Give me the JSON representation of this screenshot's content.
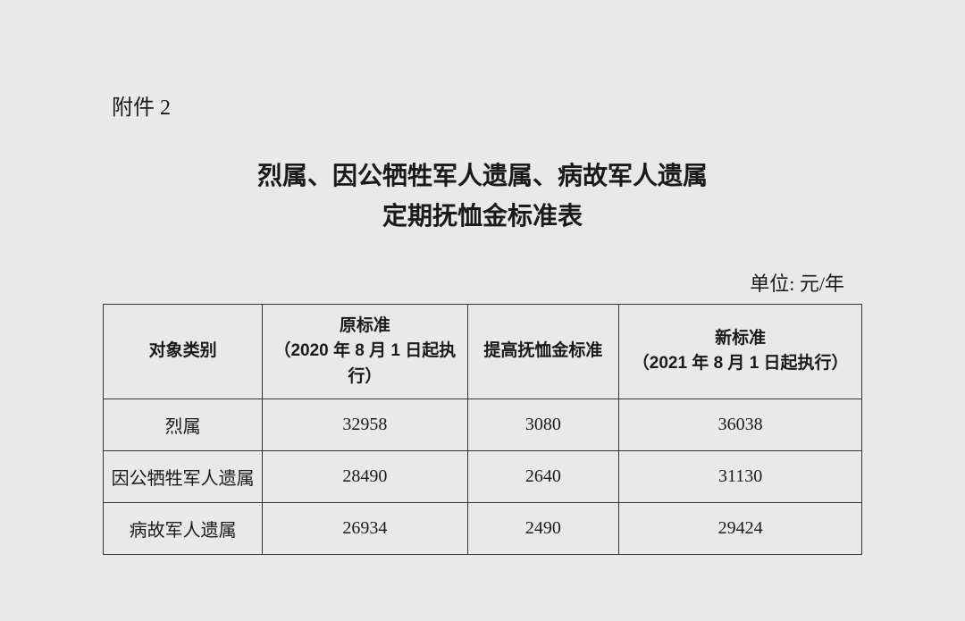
{
  "attachment_label": "附件 2",
  "title_line1": "烈属、因公牺牲军人遗属、病故军人遗属",
  "title_line2": "定期抚恤金标准表",
  "unit_label": "单位: 元/年",
  "table": {
    "columns": [
      {
        "main": "对象类别",
        "sub": ""
      },
      {
        "main": "原标准",
        "sub": "（2020 年 8 月 1 日起执行）"
      },
      {
        "main": "提高抚恤金标准",
        "sub": ""
      },
      {
        "main": "新标准",
        "sub": "（2021 年 8 月 1 日起执行）"
      }
    ],
    "rows": [
      {
        "category": "烈属",
        "original": "32958",
        "increase": "3080",
        "new": "36038"
      },
      {
        "category": "因公牺牲军人遗属",
        "original": "28490",
        "increase": "2640",
        "new": "31130"
      },
      {
        "category": "病故军人遗属",
        "original": "26934",
        "increase": "2490",
        "new": "29424"
      }
    ]
  },
  "styling": {
    "background_color": "#e8e9e8",
    "text_color": "#1a1a1a",
    "border_color": "#333333",
    "title_fontsize": 28,
    "header_fontsize": 19,
    "cell_fontsize": 20,
    "col_widths_pct": [
      21,
      27,
      20,
      32
    ]
  }
}
